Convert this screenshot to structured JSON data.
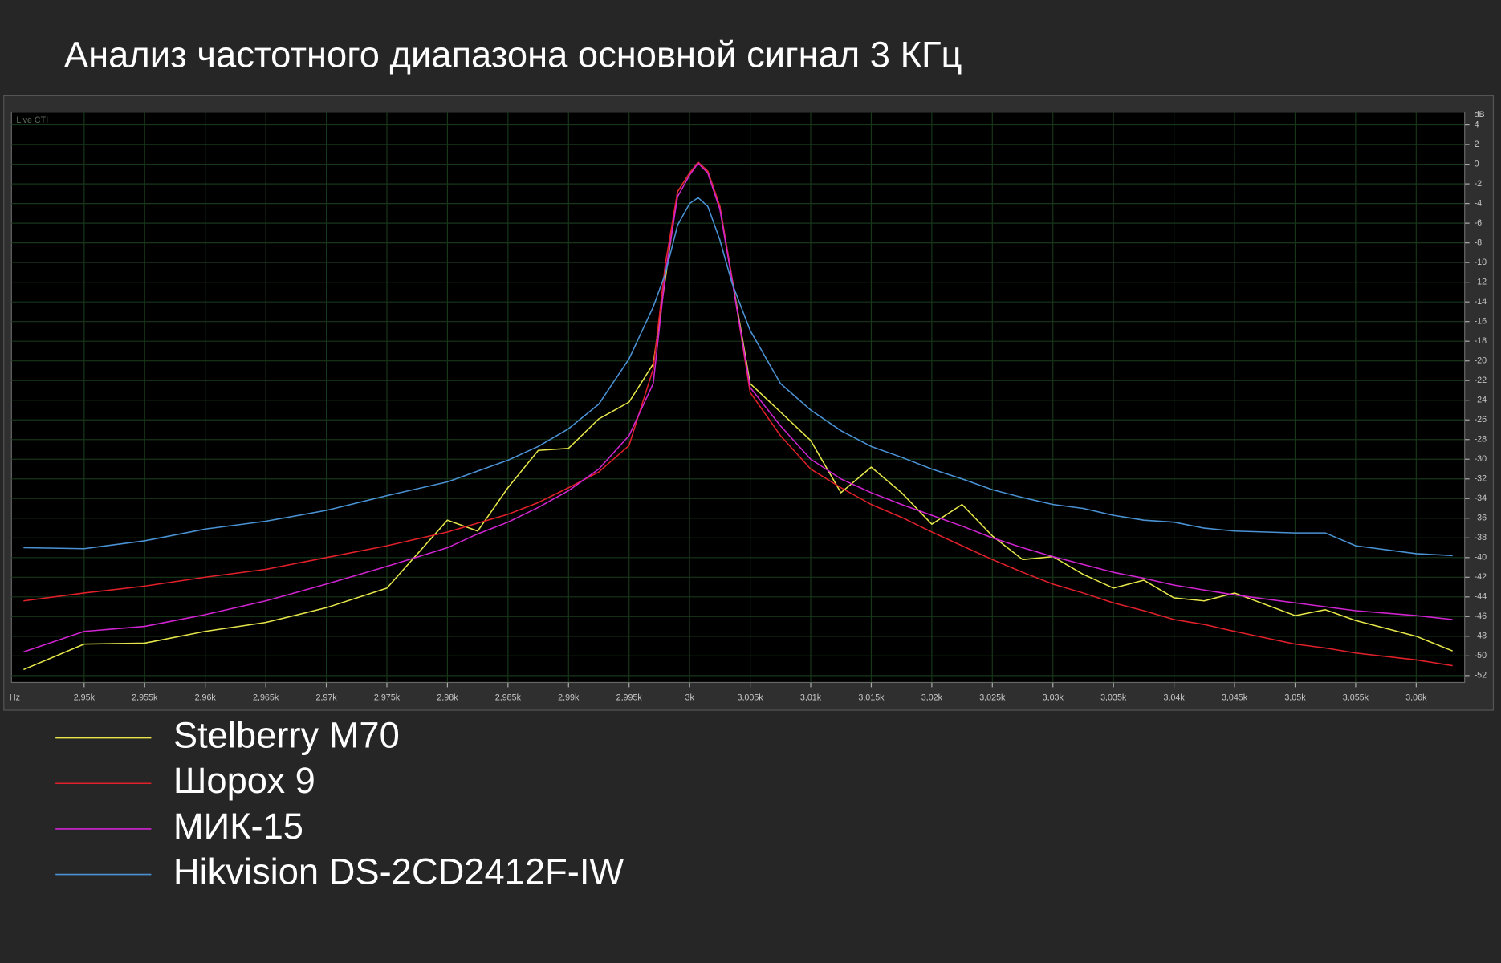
{
  "chart_data": {
    "type": "line",
    "title": "Анализ частотного диапазона основной сигнал 3 КГц",
    "x_label": "Hz",
    "y_label": "dB",
    "annotation": "Live CTI",
    "grid": true,
    "xlim": [
      2944,
      3064
    ],
    "ylim": [
      -52.7,
      5.3
    ],
    "xticks": [
      {
        "value": 2950,
        "label": "2,95k"
      },
      {
        "value": 2955,
        "label": "2,955k"
      },
      {
        "value": 2960,
        "label": "2,96k"
      },
      {
        "value": 2965,
        "label": "2,965k"
      },
      {
        "value": 2970,
        "label": "2,97k"
      },
      {
        "value": 2975,
        "label": "2,975k"
      },
      {
        "value": 2980,
        "label": "2,98k"
      },
      {
        "value": 2985,
        "label": "2,985k"
      },
      {
        "value": 2990,
        "label": "2,99k"
      },
      {
        "value": 2995,
        "label": "2,995k"
      },
      {
        "value": 3000,
        "label": "3k"
      },
      {
        "value": 3005,
        "label": "3,005k"
      },
      {
        "value": 3010,
        "label": "3,01k"
      },
      {
        "value": 3015,
        "label": "3,015k"
      },
      {
        "value": 3020,
        "label": "3,02k"
      },
      {
        "value": 3025,
        "label": "3,025k"
      },
      {
        "value": 3030,
        "label": "3,03k"
      },
      {
        "value": 3035,
        "label": "3,035k"
      },
      {
        "value": 3040,
        "label": "3,04k"
      },
      {
        "value": 3045,
        "label": "3,045k"
      },
      {
        "value": 3050,
        "label": "3,05k"
      },
      {
        "value": 3055,
        "label": "3,055k"
      },
      {
        "value": 3060,
        "label": "3,06k"
      }
    ],
    "yticks": [
      4,
      2,
      0,
      -2,
      -4,
      -6,
      -8,
      -10,
      -12,
      -14,
      -16,
      -18,
      -20,
      -22,
      -24,
      -26,
      -28,
      -30,
      -32,
      -34,
      -36,
      -38,
      -40,
      -42,
      -44,
      -46,
      -48,
      -50,
      -52
    ],
    "x": [
      2945,
      2950,
      2955,
      2960,
      2965,
      2970,
      2975,
      2980,
      2982.5,
      2985,
      2987.5,
      2990,
      2992.5,
      2995,
      2997,
      2998,
      2999,
      3000,
      3000.7,
      3001.5,
      3002.5,
      3003.5,
      3005,
      3007.5,
      3010,
      3012.5,
      3015,
      3017.5,
      3020,
      3022.5,
      3025,
      3027.5,
      3030,
      3032.5,
      3035,
      3037.5,
      3040,
      3042.5,
      3045,
      3050,
      3052.5,
      3055,
      3060,
      3063
    ],
    "series": [
      {
        "name": "Stelberry M70",
        "color": "#e6e64a",
        "values": [
          -51.4,
          -48.8,
          -48.7,
          -47.5,
          -46.6,
          -45.1,
          -43.1,
          -36.2,
          -37.3,
          -32.9,
          -29.1,
          -28.9,
          -25.9,
          -24.2,
          -20.3,
          -11.6,
          -2.8,
          -0.9,
          0.2,
          -0.7,
          -4.3,
          -11.6,
          -22.3,
          -25.2,
          -28.1,
          -33.4,
          -30.8,
          -33.4,
          -36.6,
          -34.6,
          -37.8,
          -40.2,
          -39.9,
          -41.7,
          -43.1,
          -42.3,
          -44.1,
          -44.4,
          -43.6,
          -45.9,
          -45.3,
          -46.4,
          -48.0,
          -49.5
        ]
      },
      {
        "name": "Шорох 9",
        "color": "#e0202a",
        "values": [
          -44.4,
          -43.6,
          -42.9,
          -42.0,
          -41.2,
          -40.0,
          -38.8,
          -37.4,
          -36.5,
          -35.6,
          -34.4,
          -32.9,
          -31.3,
          -28.6,
          -20.8,
          -10.1,
          -2.8,
          -0.9,
          0.2,
          -0.7,
          -4.3,
          -11.6,
          -23.2,
          -27.6,
          -31.0,
          -32.9,
          -34.6,
          -35.9,
          -37.4,
          -38.8,
          -40.2,
          -41.5,
          -42.7,
          -43.6,
          -44.6,
          -45.4,
          -46.3,
          -46.8,
          -47.5,
          -48.8,
          -49.2,
          -49.7,
          -50.4,
          -51.0
        ]
      },
      {
        "name": "МИК-15",
        "color": "#d024d0",
        "values": [
          -49.6,
          -47.5,
          -47.0,
          -45.8,
          -44.4,
          -42.7,
          -40.9,
          -39.0,
          -37.6,
          -36.4,
          -34.9,
          -33.2,
          -31.0,
          -27.6,
          -22.3,
          -11.1,
          -3.3,
          -1.1,
          0.1,
          -0.9,
          -4.6,
          -11.8,
          -22.7,
          -26.6,
          -30.0,
          -32.0,
          -33.4,
          -34.6,
          -35.7,
          -36.8,
          -38.0,
          -39.0,
          -39.9,
          -40.7,
          -41.5,
          -42.1,
          -42.8,
          -43.3,
          -43.8,
          -44.6,
          -45.0,
          -45.4,
          -45.9,
          -46.3
        ]
      },
      {
        "name": "Hikvision DS-2CD2412F-IW",
        "color": "#4a92d4",
        "values": [
          -39.0,
          -39.1,
          -38.3,
          -37.1,
          -36.3,
          -35.2,
          -33.7,
          -32.3,
          -31.2,
          -30.1,
          -28.7,
          -26.9,
          -24.4,
          -19.8,
          -14.5,
          -11.1,
          -6.2,
          -4.0,
          -3.4,
          -4.3,
          -7.7,
          -12.1,
          -16.9,
          -22.3,
          -25.0,
          -27.1,
          -28.7,
          -29.8,
          -31.0,
          -32.0,
          -33.1,
          -33.9,
          -34.6,
          -35.0,
          -35.7,
          -36.2,
          -36.4,
          -37.0,
          -37.3,
          -37.5,
          -37.5,
          -38.8,
          -39.6,
          -39.8
        ]
      }
    ]
  }
}
